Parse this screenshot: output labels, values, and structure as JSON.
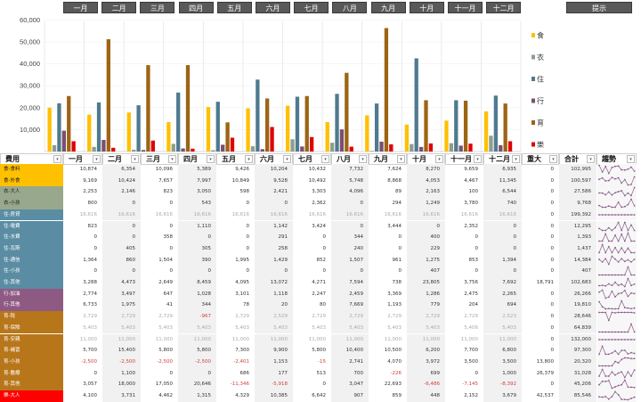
{
  "months": [
    "一月",
    "二月",
    "三月",
    "四月",
    "五月",
    "六月",
    "七月",
    "八月",
    "九月",
    "十月",
    "十一月",
    "十二月"
  ],
  "hint_button": "提示",
  "chart_data": {
    "type": "bar",
    "categories": [
      "一月",
      "二月",
      "三月",
      "四月",
      "五月",
      "六月",
      "七月",
      "八月",
      "九月",
      "十月",
      "十一月",
      "十二月"
    ],
    "ylim": [
      0,
      60000
    ],
    "yticks": [
      "10,000",
      "20,000",
      "30,000",
      "40,000",
      "50,000",
      "60,000"
    ],
    "legend_position": "right",
    "series": [
      {
        "name": "食",
        "color": "#ffc000",
        "values": [
          20000,
          16800,
          17800,
          13400,
          20300,
          19700,
          20900,
          13400,
          16500,
          12300,
          14100,
          18300
        ]
      },
      {
        "name": "衣",
        "color": "#8c9e8d",
        "values": [
          2900,
          2100,
          800,
          3500,
          600,
          2400,
          5600,
          4000,
          300,
          3400,
          3800,
          7200
        ]
      },
      {
        "name": "住",
        "color": "#4f7a8f",
        "values": [
          22000,
          22400,
          21100,
          26900,
          22700,
          32800,
          25000,
          26300,
          21900,
          42500,
          23400,
          25500
        ]
      },
      {
        "name": "行",
        "color": "#7b4f6e",
        "values": [
          9500,
          5300,
          700,
          1400,
          3100,
          1100,
          2300,
          10100,
          4500,
          2100,
          2700,
          2900
        ]
      },
      {
        "name": "育",
        "color": "#9c6414",
        "values": [
          25300,
          51200,
          39400,
          39400,
          13300,
          24200,
          25300,
          35900,
          56300,
          23400,
          23200,
          21900
        ]
      },
      {
        "name": "樂",
        "color": "#e00000",
        "values": [
          4700,
          1700,
          5000,
          1300,
          6300,
          11200,
          6600,
          2200,
          3300,
          3700,
          3600,
          4700
        ]
      }
    ]
  },
  "table": {
    "headers": [
      "費用",
      "一月",
      "二月",
      "三月",
      "四月",
      "五月",
      "六月",
      "七月",
      "八月",
      "九月",
      "十月",
      "十一月",
      "十二月",
      "重大",
      "合計",
      "趨勢"
    ],
    "rows": [
      {
        "label": "食-食料",
        "group": "food",
        "values": [
          "10,874",
          "6,354",
          "10,096",
          "5,389",
          "9,426",
          "10,204",
          "10,432",
          "7,732",
          "7,624",
          "8,270",
          "9,659",
          "6,935",
          "0",
          "102,995"
        ]
      },
      {
        "label": "食-外食",
        "group": "food",
        "values": [
          "9,169",
          "10,424",
          "7,657",
          "7,997",
          "10,849",
          "9,528",
          "10,492",
          "5,748",
          "8,868",
          "4,053",
          "4,467",
          "11,345",
          "0",
          "100,597"
        ]
      },
      {
        "label": "衣-大人",
        "group": "cloth",
        "values": [
          "2,253",
          "2,146",
          "823",
          "3,050",
          "598",
          "2,421",
          "3,303",
          "4,096",
          "89",
          "2,163",
          "100",
          "6,544",
          "0",
          "27,586"
        ]
      },
      {
        "label": "衣-小孩",
        "group": "cloth",
        "values": [
          "800",
          "0",
          "0",
          "543",
          "0",
          "0",
          "2,362",
          "0",
          "294",
          "1,249",
          "3,780",
          "740",
          "0",
          "9,768"
        ]
      },
      {
        "label": "住-房貸",
        "group": "house",
        "fixed": true,
        "values": [
          "16,616",
          "16,616",
          "16,616",
          "16,616",
          "16,616",
          "16,616",
          "16,616",
          "16,616",
          "16,616",
          "16,616",
          "16,616",
          "16,616",
          "0",
          "199,392"
        ]
      },
      {
        "label": "住-電費",
        "group": "house",
        "values": [
          "823",
          "0",
          "0",
          "1,110",
          "0",
          "1,142",
          "3,424",
          "0",
          "3,444",
          "0",
          "2,352",
          "0",
          "0",
          "12,295"
        ]
      },
      {
        "label": "住-水費",
        "group": "house",
        "values": [
          "0",
          "0",
          "358",
          "0",
          "0",
          "291",
          "0",
          "344",
          "0",
          "400",
          "0",
          "0",
          "0",
          "1,393"
        ]
      },
      {
        "label": "住-瓦斯",
        "group": "house",
        "values": [
          "0",
          "405",
          "0",
          "305",
          "0",
          "258",
          "0",
          "240",
          "0",
          "229",
          "0",
          "0",
          "0",
          "1,437"
        ]
      },
      {
        "label": "住-通信",
        "group": "house",
        "values": [
          "1,364",
          "860",
          "1,504",
          "390",
          "1,995",
          "1,429",
          "852",
          "1,507",
          "961",
          "1,275",
          "853",
          "1,394",
          "0",
          "14,384"
        ]
      },
      {
        "label": "住-小孩",
        "group": "house",
        "values": [
          "0",
          "0",
          "0",
          "0",
          "0",
          "0",
          "0",
          "0",
          "0",
          "407",
          "0",
          "0",
          "0",
          "407"
        ]
      },
      {
        "label": "住-其他",
        "group": "house",
        "values": [
          "3,288",
          "4,473",
          "2,649",
          "8,459",
          "4,095",
          "13,072",
          "4,271",
          "7,594",
          "738",
          "23,805",
          "3,756",
          "7,692",
          "18,791",
          "102,683"
        ]
      },
      {
        "label": "行-加油",
        "group": "trans",
        "values": [
          "2,774",
          "3,497",
          "647",
          "1,028",
          "3,101",
          "1,118",
          "2,247",
          "2,459",
          "3,369",
          "1,286",
          "2,475",
          "2,265",
          "0",
          "26,266"
        ]
      },
      {
        "label": "行-其他",
        "group": "trans",
        "values": [
          "6,733",
          "1,975",
          "41",
          "344",
          "78",
          "20",
          "80",
          "7,669",
          "1,193",
          "779",
          "204",
          "694",
          "0",
          "19,810"
        ]
      },
      {
        "label": "育-稅",
        "group": "edu",
        "fixed": true,
        "values": [
          "2,729",
          "2,729",
          "2,729",
          "-967",
          "2,729",
          "2,529",
          "2,729",
          "2,729",
          "2,729",
          "2,729",
          "2,729",
          "2,523",
          "0",
          "28,646"
        ]
      },
      {
        "label": "育-保險",
        "group": "edu",
        "fixed": true,
        "values": [
          "5,403",
          "5,403",
          "5,403",
          "5,403",
          "5,403",
          "5,403",
          "5,403",
          "5,403",
          "5,403",
          "5,403",
          "5,406",
          "5,403",
          "0",
          "64,839"
        ]
      },
      {
        "label": "育-安親",
        "group": "edu",
        "fixed": true,
        "values": [
          "11,000",
          "11,000",
          "11,000",
          "11,000",
          "11,000",
          "11,000",
          "11,000",
          "11,000",
          "11,000",
          "11,000",
          "11,000",
          "11,000",
          "0",
          "132,000"
        ]
      },
      {
        "label": "育-補習",
        "group": "edu",
        "values": [
          "5,700",
          "15,400",
          "5,800",
          "5,800",
          "7,300",
          "9,900",
          "5,800",
          "10,400",
          "10,500",
          "6,200",
          "7,700",
          "6,800",
          "0",
          "97,300"
        ]
      },
      {
        "label": "育-小孩",
        "group": "edu",
        "values": [
          "-2,500",
          "-2,500",
          "-2,500",
          "-2,500",
          "-2,401",
          "1,153",
          "-15",
          "2,741",
          "4,070",
          "3,972",
          "3,500",
          "3,500",
          "13,800",
          "20,320"
        ]
      },
      {
        "label": "育-醫療",
        "group": "edu",
        "values": [
          "0",
          "1,100",
          "0",
          "0",
          "686",
          "177",
          "513",
          "700",
          "-226",
          "699",
          "0",
          "1,000",
          "26,379",
          "31,028"
        ]
      },
      {
        "label": "育-其他",
        "group": "edu",
        "values": [
          "3,057",
          "18,000",
          "17,050",
          "20,646",
          "-11,346",
          "-5,918",
          "0",
          "3,047",
          "22,693",
          "-6,486",
          "-7,145",
          "-8,392",
          "0",
          "45,206"
        ]
      },
      {
        "label": "樂-大人",
        "group": "fun",
        "values": [
          "4,100",
          "3,731",
          "4,462",
          "1,315",
          "4,329",
          "10,385",
          "6,642",
          "907",
          "859",
          "448",
          "2,152",
          "3,679",
          "42,537",
          "85,546"
        ]
      }
    ]
  },
  "group_colors": {
    "food": "#ffc000",
    "cloth": "#98a88c",
    "house": "#5a8da3",
    "trans": "#8e5a83",
    "edu": "#b8761a",
    "fun": "#ff0000"
  },
  "sparkline_color": "#8a5a8a"
}
